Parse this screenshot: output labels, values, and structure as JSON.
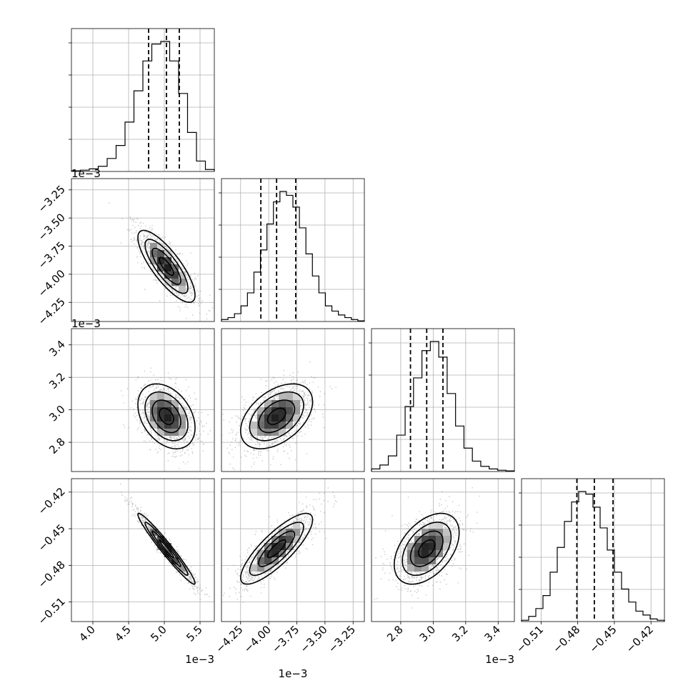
{
  "chart_data": {
    "type": "corner",
    "title": "",
    "grid": true,
    "quantile_lines": [
      0.16,
      0.5,
      0.84
    ],
    "parameters": [
      {
        "range": [
          0.0037,
          0.0057
        ],
        "median": 0.00503,
        "q16": 0.00478,
        "q84": 0.00521,
        "ticks": [
          4.0,
          4.5,
          5.0,
          5.5
        ],
        "tick_labels": [
          "4.0",
          "4.5",
          "5.0",
          "5.5"
        ],
        "offset": "1e−3",
        "hist": [
          0.005,
          0.01,
          0.02,
          0.04,
          0.1,
          0.2,
          0.38,
          0.62,
          0.85,
          0.98,
          1.0,
          0.85,
          0.6,
          0.3,
          0.08,
          0.015
        ]
      },
      {
        "range": [
          -0.00442,
          -0.00315
        ],
        "median": -0.00393,
        "q16": -0.00407,
        "q84": -0.00376,
        "ticks": [
          -4.25,
          -4.0,
          -3.75,
          -3.5,
          -3.25
        ],
        "tick_labels": [
          "−4.25",
          "−4.00",
          "−3.75",
          "−3.50",
          "−3.25"
        ],
        "offset": "1e−3",
        "hist": [
          0.015,
          0.03,
          0.06,
          0.12,
          0.22,
          0.38,
          0.55,
          0.75,
          0.92,
          1.0,
          0.97,
          0.88,
          0.72,
          0.52,
          0.35,
          0.22,
          0.12,
          0.08,
          0.05,
          0.03,
          0.015,
          0.005
        ]
      },
      {
        "range": [
          0.00262,
          0.0035
        ],
        "median": 0.00296,
        "q16": 0.00286,
        "q84": 0.00306,
        "ticks": [
          2.8,
          3.0,
          3.2,
          3.4
        ],
        "tick_labels": [
          "2.8",
          "3.0",
          "3.2",
          "3.4"
        ],
        "offset": "1e−3",
        "hist": [
          0.02,
          0.05,
          0.12,
          0.28,
          0.5,
          0.72,
          0.93,
          1.0,
          0.88,
          0.6,
          0.35,
          0.18,
          0.08,
          0.04,
          0.02,
          0.01,
          0.005
        ]
      },
      {
        "range": [
          -0.526,
          -0.409
        ],
        "median": -0.4664,
        "q16": -0.4807,
        "q84": -0.4511,
        "ticks": [
          -0.51,
          -0.48,
          -0.45,
          -0.42
        ],
        "tick_labels": [
          "−0.51",
          "−0.48",
          "−0.45",
          "−0.42"
        ],
        "offset": "",
        "hist": [
          0.01,
          0.04,
          0.1,
          0.2,
          0.38,
          0.57,
          0.77,
          0.92,
          1.0,
          0.98,
          0.88,
          0.72,
          0.55,
          0.38,
          0.25,
          0.15,
          0.08,
          0.05,
          0.02,
          0.01
        ]
      }
    ],
    "pairs": [
      {
        "x": 0,
        "y": 1,
        "center": [
          0.00503,
          -0.00393
        ],
        "sd": [
          0.0002,
          0.00016
        ],
        "rho": -0.8
      },
      {
        "x": 0,
        "y": 2,
        "center": [
          0.00503,
          0.00296
        ],
        "sd": [
          0.0002,
          0.0001
        ],
        "rho": -0.35
      },
      {
        "x": 1,
        "y": 2,
        "center": [
          -0.00393,
          0.00296
        ],
        "sd": [
          0.00016,
          0.0001
        ],
        "rho": 0.45
      },
      {
        "x": 0,
        "y": 3,
        "center": [
          0.00503,
          -0.4664
        ],
        "sd": [
          0.0002,
          0.0145
        ],
        "rho": -0.97
      },
      {
        "x": 1,
        "y": 3,
        "center": [
          -0.00393,
          -0.4664
        ],
        "sd": [
          0.00016,
          0.0145
        ],
        "rho": 0.82
      },
      {
        "x": 2,
        "y": 3,
        "center": [
          0.00296,
          -0.4664
        ],
        "sd": [
          0.0001,
          0.0145
        ],
        "rho": 0.45
      }
    ]
  }
}
